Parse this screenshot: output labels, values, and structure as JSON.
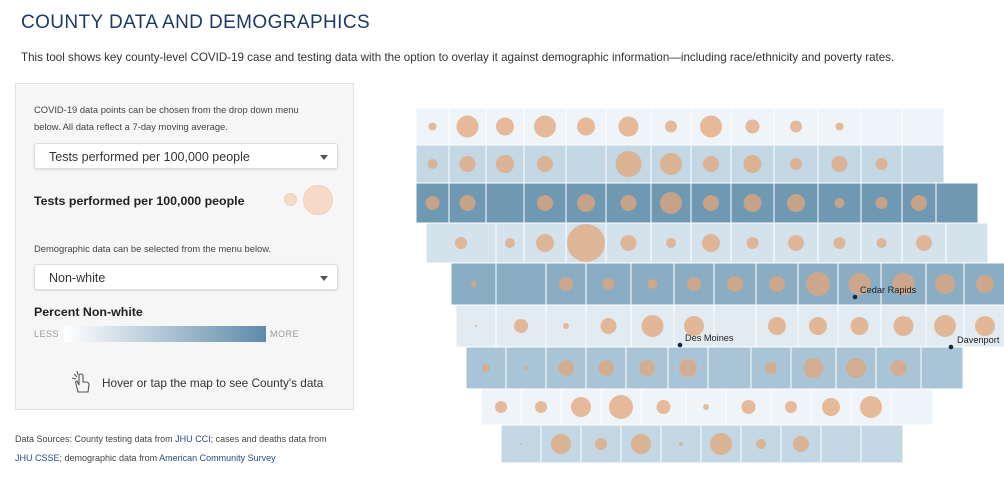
{
  "header": {
    "title": "COUNTY DATA AND DEMOGRAPHICS",
    "subtitle": "This tool shows key county-level COVID-19 case and testing data with the option to overlay it against demographic information—including race/ethnicity and poverty rates."
  },
  "panel": {
    "covid_note_line1": "COVID-19 data points can be chosen from the drop down menu",
    "covid_note_line2": "below. All data reflect a 7-day moving average.",
    "covid_select_value": "Tests performed per 100,000 people",
    "covid_legend_title": "Tests performed per 100,000 people",
    "demo_note": "Demographic data can be selected from the menu below.",
    "demo_select_value": "Non-white",
    "demo_legend_title": "Percent Non-white",
    "less_label": "LESS",
    "more_label": "MORE",
    "hover_hint": "Hover or tap the map to see County's data"
  },
  "sources": {
    "prefix": "Data Sources: County testing data from ",
    "jhu_cci": "JHU CCI",
    "mid": "; cases and deaths data from ",
    "jhu_csse": "JHU CSSE",
    "mid2": "; demographic data from ",
    "acs": "American Community Survey"
  },
  "map": {
    "cities": [
      {
        "name": "Cedar Rapids"
      },
      {
        "name": "Des Moines"
      },
      {
        "name": "Davenport"
      }
    ],
    "colors": {
      "bubble_fill": "#e2a57a",
      "choropleth_low": "#f3f7fa",
      "choropleth_high": "#5e8ba8",
      "county_border": "#ffffff"
    }
  }
}
